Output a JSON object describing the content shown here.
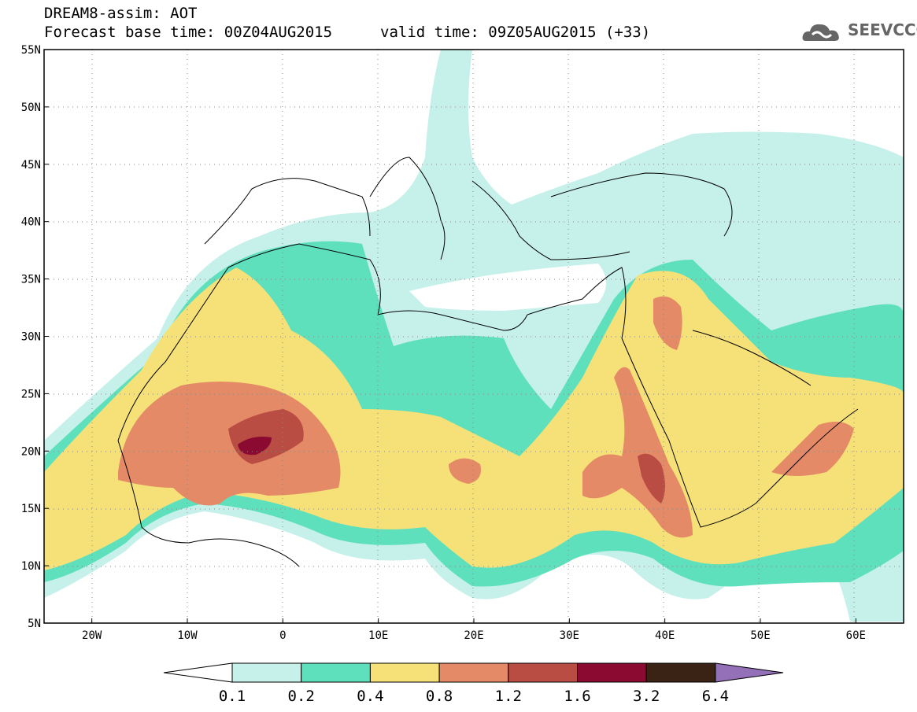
{
  "header": {
    "title": "DREAM8-assim: AOT",
    "base_time": "Forecast base time: 00Z04AUG2015",
    "valid_time": "valid time: 09Z05AUG2015 (+33)"
  },
  "logo": {
    "text": "SEEVCCC",
    "icon": "cloud-logo-icon"
  },
  "map": {
    "lon_range": [
      -25,
      65
    ],
    "lat_range": [
      5,
      55
    ],
    "lat_ticks": [
      "55N",
      "50N",
      "45N",
      "40N",
      "35N",
      "30N",
      "25N",
      "20N",
      "15N",
      "10N",
      "5N"
    ],
    "lon_ticks": [
      "20W",
      "10W",
      "0",
      "10E",
      "20E",
      "30E",
      "40E",
      "50E",
      "60E"
    ],
    "grid": "dotted"
  },
  "colorbar": {
    "labels": [
      "0.1",
      "0.2",
      "0.4",
      "0.8",
      "1.2",
      "1.6",
      "3.2",
      "6.4"
    ],
    "colors": [
      "#ffffff",
      "#c6f0ea",
      "#5fe0bd",
      "#f5e178",
      "#e58a66",
      "#b94c43",
      "#8a0a32",
      "#3a2314",
      "#9370b8"
    ]
  }
}
